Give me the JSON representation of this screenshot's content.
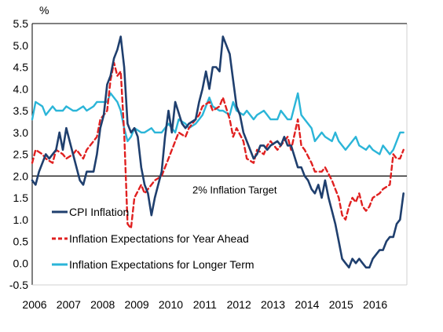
{
  "chart_data": {
    "type": "line",
    "ylabel": "%",
    "ylim": [
      -0.5,
      5.5
    ],
    "yticks": [
      -0.5,
      0.0,
      0.5,
      1.0,
      1.5,
      2.0,
      2.5,
      3.0,
      3.5,
      4.0,
      4.5,
      5.0,
      5.5
    ],
    "ytick_labels": [
      "-0.5",
      "0.0",
      "0.5",
      "1.0",
      "1.5",
      "2.0",
      "2.5",
      "3.0",
      "3.5",
      "4.0",
      "4.5",
      "5.0",
      "5.5"
    ],
    "xlim": [
      2006,
      2017
    ],
    "xticks": [
      2006,
      2007,
      2008,
      2009,
      2010,
      2011,
      2012,
      2013,
      2014,
      2015,
      2016
    ],
    "xtick_labels": [
      "2006",
      "2007",
      "2008",
      "2009",
      "2010",
      "2011",
      "2012",
      "2013",
      "2014",
      "2015",
      "2016"
    ],
    "grid": false,
    "legend_position": "lower-left",
    "reference_line": {
      "y": 2.0,
      "label": "2% Inflation Target"
    },
    "series": [
      {
        "name": "CPI Inflation",
        "color": "#1f3f6e",
        "dash": "solid",
        "x": [
          2006.0,
          2006.1,
          2006.2,
          2006.4,
          2006.5,
          2006.7,
          2006.8,
          2006.9,
          2007.0,
          2007.1,
          2007.2,
          2007.4,
          2007.5,
          2007.6,
          2007.8,
          2007.9,
          2008.0,
          2008.1,
          2008.2,
          2008.3,
          2008.4,
          2008.5,
          2008.6,
          2008.7,
          2008.8,
          2008.9,
          2009.0,
          2009.1,
          2009.2,
          2009.3,
          2009.4,
          2009.5,
          2009.6,
          2009.7,
          2009.8,
          2009.9,
          2010.0,
          2010.1,
          2010.2,
          2010.4,
          2010.5,
          2010.6,
          2010.8,
          2010.9,
          2011.0,
          2011.1,
          2011.2,
          2011.3,
          2011.4,
          2011.5,
          2011.6,
          2011.7,
          2011.8,
          2011.9,
          2012.0,
          2012.1,
          2012.2,
          2012.3,
          2012.4,
          2012.5,
          2012.6,
          2012.7,
          2012.8,
          2012.9,
          2013.0,
          2013.2,
          2013.3,
          2013.4,
          2013.5,
          2013.6,
          2013.8,
          2013.9,
          2014.0,
          2014.1,
          2014.2,
          2014.3,
          2014.4,
          2014.5,
          2014.6,
          2014.7,
          2014.8,
          2014.9,
          2015.0,
          2015.1,
          2015.2,
          2015.3,
          2015.4,
          2015.5,
          2015.6,
          2015.7,
          2015.8,
          2015.9,
          2016.0,
          2016.1,
          2016.2,
          2016.3,
          2016.4,
          2016.5,
          2016.6,
          2016.7,
          2016.8,
          2016.9
        ],
        "values": [
          1.9,
          1.8,
          2.1,
          2.5,
          2.4,
          2.6,
          3.0,
          2.6,
          3.1,
          2.8,
          2.5,
          1.9,
          1.8,
          2.1,
          2.1,
          2.5,
          3.1,
          3.4,
          4.1,
          4.3,
          4.7,
          4.9,
          5.2,
          4.5,
          3.2,
          3.0,
          3.1,
          2.9,
          2.2,
          1.8,
          1.6,
          1.1,
          1.5,
          1.8,
          2.1,
          2.9,
          3.5,
          3.0,
          3.7,
          3.2,
          3.1,
          3.2,
          3.3,
          3.7,
          4.0,
          4.4,
          4.0,
          4.5,
          4.5,
          4.4,
          5.2,
          5.0,
          4.8,
          4.2,
          3.6,
          3.4,
          3.0,
          2.8,
          2.6,
          2.4,
          2.5,
          2.7,
          2.7,
          2.6,
          2.7,
          2.8,
          2.7,
          2.9,
          2.7,
          2.7,
          2.2,
          2.2,
          2.0,
          1.9,
          1.7,
          1.6,
          1.8,
          1.5,
          1.9,
          1.5,
          1.2,
          0.9,
          0.5,
          0.1,
          0.0,
          -0.1,
          0.1,
          0.0,
          0.1,
          0.0,
          -0.1,
          -0.1,
          0.1,
          0.2,
          0.3,
          0.3,
          0.5,
          0.6,
          0.6,
          0.9,
          1.0,
          1.6
        ]
      },
      {
        "name": "Inflation Expectations for Year Ahead",
        "color": "#e02020",
        "dash": "dashed",
        "x": [
          2006.0,
          2006.1,
          2006.3,
          2006.4,
          2006.6,
          2006.7,
          2006.9,
          2007.0,
          2007.2,
          2007.3,
          2007.5,
          2007.6,
          2007.8,
          2007.9,
          2008.0,
          2008.2,
          2008.3,
          2008.4,
          2008.5,
          2008.6,
          2008.7,
          2008.8,
          2008.9,
          2009.0,
          2009.2,
          2009.3,
          2009.5,
          2009.6,
          2009.8,
          2009.9,
          2010.0,
          2010.2,
          2010.3,
          2010.5,
          2010.6,
          2010.8,
          2010.9,
          2011.0,
          2011.2,
          2011.3,
          2011.5,
          2011.6,
          2011.8,
          2011.9,
          2012.0,
          2012.2,
          2012.3,
          2012.5,
          2012.6,
          2012.8,
          2012.9,
          2013.0,
          2013.2,
          2013.3,
          2013.5,
          2013.6,
          2013.8,
          2013.9,
          2014.0,
          2014.2,
          2014.3,
          2014.5,
          2014.6,
          2014.8,
          2014.9,
          2015.0,
          2015.1,
          2015.2,
          2015.3,
          2015.4,
          2015.5,
          2015.6,
          2015.7,
          2015.8,
          2015.9,
          2016.0,
          2016.2,
          2016.3,
          2016.5,
          2016.6,
          2016.7,
          2016.8,
          2016.9
        ],
        "values": [
          2.3,
          2.6,
          2.5,
          2.4,
          2.3,
          2.6,
          2.5,
          2.4,
          2.5,
          2.6,
          2.4,
          2.6,
          2.8,
          2.9,
          3.3,
          3.5,
          4.2,
          4.6,
          4.3,
          4.4,
          3.0,
          0.9,
          0.8,
          1.5,
          1.8,
          1.6,
          1.8,
          1.9,
          2.0,
          2.2,
          2.4,
          2.8,
          3.0,
          2.9,
          3.1,
          3.3,
          3.4,
          3.6,
          3.7,
          3.5,
          3.6,
          3.8,
          3.3,
          2.9,
          3.1,
          2.8,
          2.4,
          2.3,
          2.6,
          2.5,
          2.7,
          2.8,
          2.6,
          2.7,
          2.9,
          2.6,
          3.3,
          2.7,
          2.6,
          2.3,
          2.1,
          2.1,
          2.2,
          1.9,
          1.7,
          1.5,
          1.1,
          1.0,
          1.3,
          1.5,
          1.4,
          1.6,
          1.3,
          1.2,
          1.3,
          1.5,
          1.6,
          1.7,
          1.8,
          2.5,
          2.4,
          2.4,
          2.6
        ]
      },
      {
        "name": "Inflation Expectations for Longer Term",
        "color": "#2bb5d8",
        "dash": "solid",
        "x": [
          2006.0,
          2006.1,
          2006.3,
          2006.4,
          2006.6,
          2006.7,
          2006.9,
          2007.0,
          2007.2,
          2007.3,
          2007.5,
          2007.6,
          2007.8,
          2007.9,
          2008.0,
          2008.2,
          2008.3,
          2008.5,
          2008.6,
          2008.7,
          2008.8,
          2008.9,
          2009.0,
          2009.2,
          2009.3,
          2009.5,
          2009.6,
          2009.8,
          2009.9,
          2010.0,
          2010.2,
          2010.3,
          2010.5,
          2010.6,
          2010.8,
          2010.9,
          2011.0,
          2011.2,
          2011.3,
          2011.5,
          2011.6,
          2011.8,
          2011.9,
          2012.0,
          2012.2,
          2012.3,
          2012.5,
          2012.6,
          2012.8,
          2012.9,
          2013.0,
          2013.2,
          2013.3,
          2013.5,
          2013.6,
          2013.8,
          2013.9,
          2014.0,
          2014.2,
          2014.3,
          2014.5,
          2014.6,
          2014.8,
          2014.9,
          2015.0,
          2015.2,
          2015.3,
          2015.5,
          2015.6,
          2015.8,
          2015.9,
          2016.0,
          2016.2,
          2016.3,
          2016.5,
          2016.6,
          2016.7,
          2016.8,
          2016.9
        ],
        "values": [
          3.3,
          3.7,
          3.6,
          3.4,
          3.6,
          3.5,
          3.5,
          3.6,
          3.5,
          3.5,
          3.6,
          3.5,
          3.6,
          3.7,
          3.7,
          3.7,
          3.9,
          3.7,
          3.5,
          3.1,
          2.8,
          2.9,
          3.1,
          3.0,
          3.0,
          3.1,
          3.0,
          3.0,
          3.1,
          3.2,
          3.0,
          3.3,
          3.2,
          3.1,
          3.2,
          3.3,
          3.4,
          3.8,
          3.6,
          3.5,
          3.5,
          3.4,
          3.7,
          3.5,
          3.4,
          3.5,
          3.3,
          3.4,
          3.5,
          3.4,
          3.3,
          3.3,
          3.5,
          3.3,
          3.3,
          3.9,
          3.4,
          3.3,
          3.1,
          2.8,
          3.0,
          2.9,
          2.8,
          3.0,
          2.8,
          2.6,
          2.7,
          2.9,
          2.7,
          2.6,
          2.7,
          2.6,
          2.5,
          2.7,
          2.5,
          2.6,
          2.8,
          3.0,
          3.0
        ]
      }
    ]
  }
}
